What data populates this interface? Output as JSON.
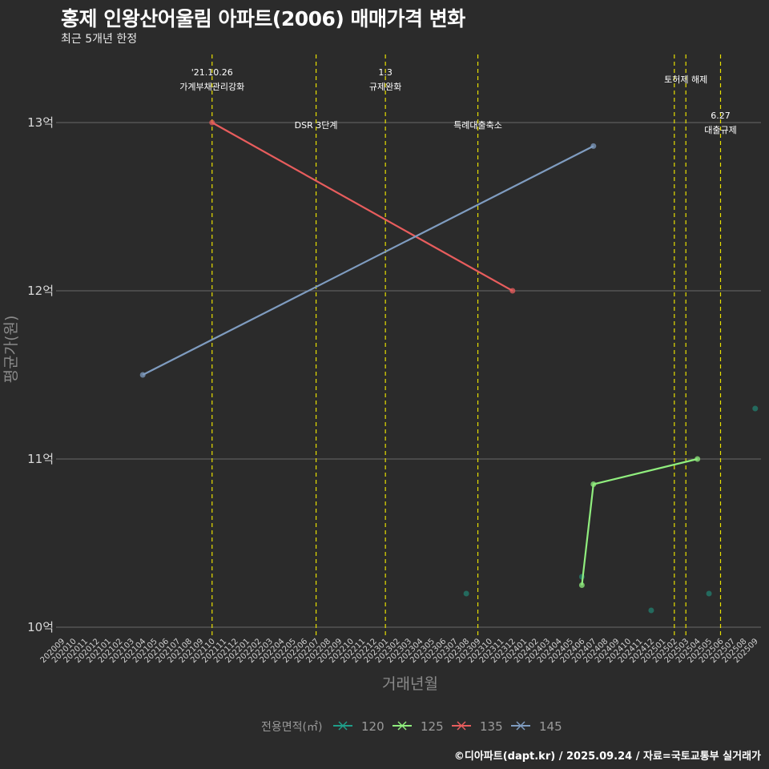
{
  "title": "홍제 인왕산어울림 아파트(2006) 매매가격 변화",
  "subtitle": "최근 5개년 한정",
  "credit": "©디아파트(dapt.kr) / 2025.09.24 / 자료=국토교통부 실거래가",
  "chart_data": {
    "type": "line",
    "xlabel": "거래년월",
    "ylabel": "평균가(원)",
    "ylim": [
      9.95,
      13.4
    ],
    "yticks": [
      {
        "value": 10,
        "label": "10억"
      },
      {
        "value": 11,
        "label": "11억"
      },
      {
        "value": 12,
        "label": "12억"
      },
      {
        "value": 13,
        "label": "13억"
      }
    ],
    "categories": [
      "202009",
      "202010",
      "202011",
      "202012",
      "202101",
      "202102",
      "202103",
      "202104",
      "202105",
      "202106",
      "202107",
      "202108",
      "202109",
      "202110",
      "202111",
      "202112",
      "202201",
      "202202",
      "202203",
      "202204",
      "202205",
      "202206",
      "202207",
      "202208",
      "202209",
      "202210",
      "202211",
      "202212",
      "202301",
      "202302",
      "202303",
      "202304",
      "202305",
      "202306",
      "202307",
      "202308",
      "202309",
      "202310",
      "202311",
      "202312",
      "202401",
      "202402",
      "202403",
      "202404",
      "202405",
      "202406",
      "202407",
      "202408",
      "202409",
      "202410",
      "202411",
      "202412",
      "202501",
      "202502",
      "202503",
      "202504",
      "202505",
      "202506",
      "202507",
      "202508",
      "202509"
    ],
    "legend_title": "전용면적(㎡)",
    "series": [
      {
        "name": "120",
        "color": "#1f9e89",
        "points": [
          [
            "202308",
            10.2
          ],
          [
            "202406",
            10.3
          ],
          [
            "202412",
            10.1
          ],
          [
            "202505",
            10.2
          ],
          [
            "202509",
            11.3
          ]
        ]
      },
      {
        "name": "125",
        "color": "#90ee7e",
        "points": [
          [
            "202406",
            10.25
          ],
          [
            "202407",
            10.85
          ],
          [
            "202504",
            11.0
          ]
        ]
      },
      {
        "name": "135",
        "color": "#e85d5d",
        "points": [
          [
            "202110",
            13.0
          ],
          [
            "202312",
            12.0
          ]
        ]
      },
      {
        "name": "145",
        "color": "#7f9cc0",
        "points": [
          [
            "202104",
            11.5
          ],
          [
            "202407",
            12.86
          ]
        ]
      }
    ],
    "events": [
      {
        "month": "202110",
        "line1": "'21.10.26",
        "line2": "가계부채관리강화",
        "level": "top"
      },
      {
        "month": "202207",
        "line1": "DSR 3단계",
        "line2": "",
        "level": "low"
      },
      {
        "month": "202301",
        "line1": "1.3",
        "line2": "규제완화",
        "level": "top"
      },
      {
        "month": "202309",
        "line1": "특례대출축소",
        "line2": "",
        "level": "low"
      },
      {
        "month": "202502",
        "line1": "",
        "line2": "",
        "level": "none"
      },
      {
        "month": "202503",
        "line1": "토허제 해제",
        "line2": "",
        "level": "mid"
      },
      {
        "month": "202506",
        "line1": "6.27",
        "line2": "대출규제",
        "level": "low"
      }
    ]
  }
}
